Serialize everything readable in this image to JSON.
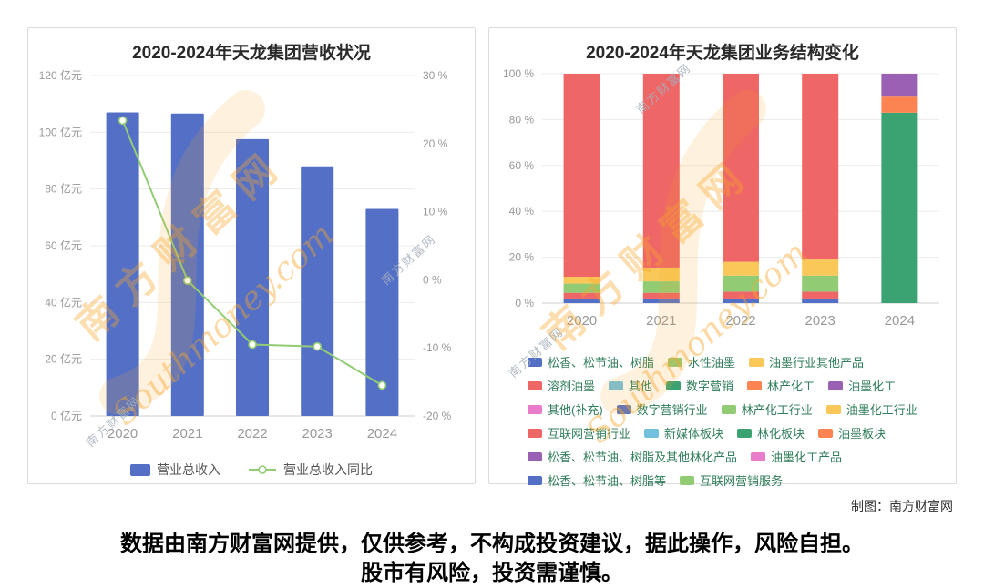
{
  "page": {
    "credit": "制图：南方财富网",
    "footer_line1": "数据由南方财富网提供，仅供参考，不构成投资建议，据此操作，风险自担。",
    "footer_line2": "股市有风险，投资需谨慎。",
    "watermark_cn": "南方财富网",
    "watermark_en": "Southmoney.com",
    "watermark_color": "#f7a62b"
  },
  "chart_data": [
    {
      "type": "bar",
      "subtype": "bar+line-dual-axis",
      "title": "2020-2024年天龙集团营收状况",
      "categories": [
        "2020",
        "2021",
        "2022",
        "2023",
        "2024"
      ],
      "series": [
        {
          "name": "营业总收入",
          "chart": "bar",
          "unit": "亿元",
          "axis": "left",
          "color": "#5470c6",
          "values": [
            107,
            106.6,
            97.6,
            88,
            73
          ]
        },
        {
          "name": "营业总收入同比",
          "chart": "line",
          "unit": "%",
          "axis": "right",
          "color": "#91cc75",
          "values": [
            23.4,
            -0.1,
            -9.5,
            -9.8,
            -15.5
          ]
        }
      ],
      "left_axis": {
        "min": 0,
        "max": 120,
        "ticks": [
          "120 亿元",
          "100 亿元",
          "80 亿元",
          "60 亿元",
          "40 亿元",
          "20 亿元",
          "0 亿元"
        ]
      },
      "right_axis": {
        "min": -20,
        "max": 30,
        "ticks": [
          "30 %",
          "20 %",
          "10 %",
          "0 %",
          "-10 %",
          "-20 %"
        ]
      },
      "legend_position": "bottom",
      "grid": true
    },
    {
      "type": "bar",
      "subtype": "stacked-percent",
      "title": "2020-2024年天龙集团业务结构变化",
      "categories": [
        "2020",
        "2021",
        "2022",
        "2023",
        "2024"
      ],
      "y_axis": {
        "min": 0,
        "max": 100,
        "ticks": [
          "100 %",
          "80 %",
          "60 %",
          "40 %",
          "20 %",
          "0 %"
        ]
      },
      "bars": [
        {
          "category": "2020",
          "segments": [
            {
              "name": "松香、松节油、树脂",
              "value": 2,
              "color": "#5470c6"
            },
            {
              "name": "溶剂油墨",
              "value": 2.5,
              "color": "#ee6666"
            },
            {
              "name": "水性油墨",
              "value": 4,
              "color": "#91cc75"
            },
            {
              "name": "油墨行业其他产品",
              "value": 3,
              "color": "#fac858"
            },
            {
              "name": "互联网营销行业",
              "value": 88.5,
              "color": "#ee6666"
            }
          ]
        },
        {
          "category": "2021",
          "segments": [
            {
              "name": "松香、松节油、树脂",
              "value": 2,
              "color": "#5470c6"
            },
            {
              "name": "溶剂油墨",
              "value": 2.5,
              "color": "#ee6666"
            },
            {
              "name": "水性油墨",
              "value": 5,
              "color": "#91cc75"
            },
            {
              "name": "油墨行业其他产品",
              "value": 6,
              "color": "#fac858"
            },
            {
              "name": "互联网营销行业",
              "value": 84.5,
              "color": "#ee6666"
            }
          ]
        },
        {
          "category": "2022",
          "segments": [
            {
              "name": "松香、松节油、树脂",
              "value": 2,
              "color": "#5470c6"
            },
            {
              "name": "溶剂油墨",
              "value": 3,
              "color": "#ee6666"
            },
            {
              "name": "水性油墨",
              "value": 7,
              "color": "#91cc75"
            },
            {
              "name": "油墨行业其他产品",
              "value": 6,
              "color": "#fac858"
            },
            {
              "name": "互联网营销行业",
              "value": 82,
              "color": "#ee6666"
            }
          ]
        },
        {
          "category": "2023",
          "segments": [
            {
              "name": "松香、松节油、树脂",
              "value": 2,
              "color": "#5470c6"
            },
            {
              "name": "溶剂油墨",
              "value": 3,
              "color": "#ee6666"
            },
            {
              "name": "水性油墨",
              "value": 7,
              "color": "#91cc75"
            },
            {
              "name": "油墨行业其他产品",
              "value": 7,
              "color": "#fac858"
            },
            {
              "name": "互联网营销行业",
              "value": 81,
              "color": "#ee6666"
            }
          ]
        },
        {
          "category": "2024",
          "segments": [
            {
              "name": "数字营销",
              "value": 83,
              "color": "#3ba272"
            },
            {
              "name": "林产化工",
              "value": 7,
              "color": "#fc8452"
            },
            {
              "name": "油墨化工",
              "value": 10,
              "color": "#9a60b4"
            }
          ]
        }
      ],
      "legend_rows": [
        [
          {
            "label": "松香、松节油、树脂",
            "color": "#5470c6"
          },
          {
            "label": "水性油墨",
            "color": "#91cc75"
          },
          {
            "label": "油墨行业其他产品",
            "color": "#fac858"
          }
        ],
        [
          {
            "label": "溶剂油墨",
            "color": "#ee6666"
          },
          {
            "label": "其他",
            "color": "#73c0de"
          },
          {
            "label": "数字营销",
            "color": "#3ba272"
          },
          {
            "label": "林产化工",
            "color": "#fc8452"
          },
          {
            "label": "油墨化工",
            "color": "#9a60b4"
          }
        ],
        [
          {
            "label": "其他(补充)",
            "color": "#ea7ccc"
          },
          {
            "label": "数字营销行业",
            "color": "#5470c6"
          },
          {
            "label": "林产化工行业",
            "color": "#91cc75"
          },
          {
            "label": "油墨化工行业",
            "color": "#fac858"
          }
        ],
        [
          {
            "label": "互联网营销行业",
            "color": "#ee6666"
          },
          {
            "label": "新媒体板块",
            "color": "#73c0de"
          },
          {
            "label": "林化板块",
            "color": "#3ba272"
          },
          {
            "label": "油墨板块",
            "color": "#fc8452"
          }
        ],
        [
          {
            "label": "松香、松节油、树脂及其他林化产品",
            "color": "#9a60b4"
          },
          {
            "label": "油墨化工产品",
            "color": "#ea7ccc"
          }
        ],
        [
          {
            "label": "松香、松节油、树脂等",
            "color": "#5470c6"
          },
          {
            "label": "互联网营销服务",
            "color": "#91cc75"
          }
        ]
      ],
      "legend_position": "bottom",
      "grid": true
    }
  ]
}
